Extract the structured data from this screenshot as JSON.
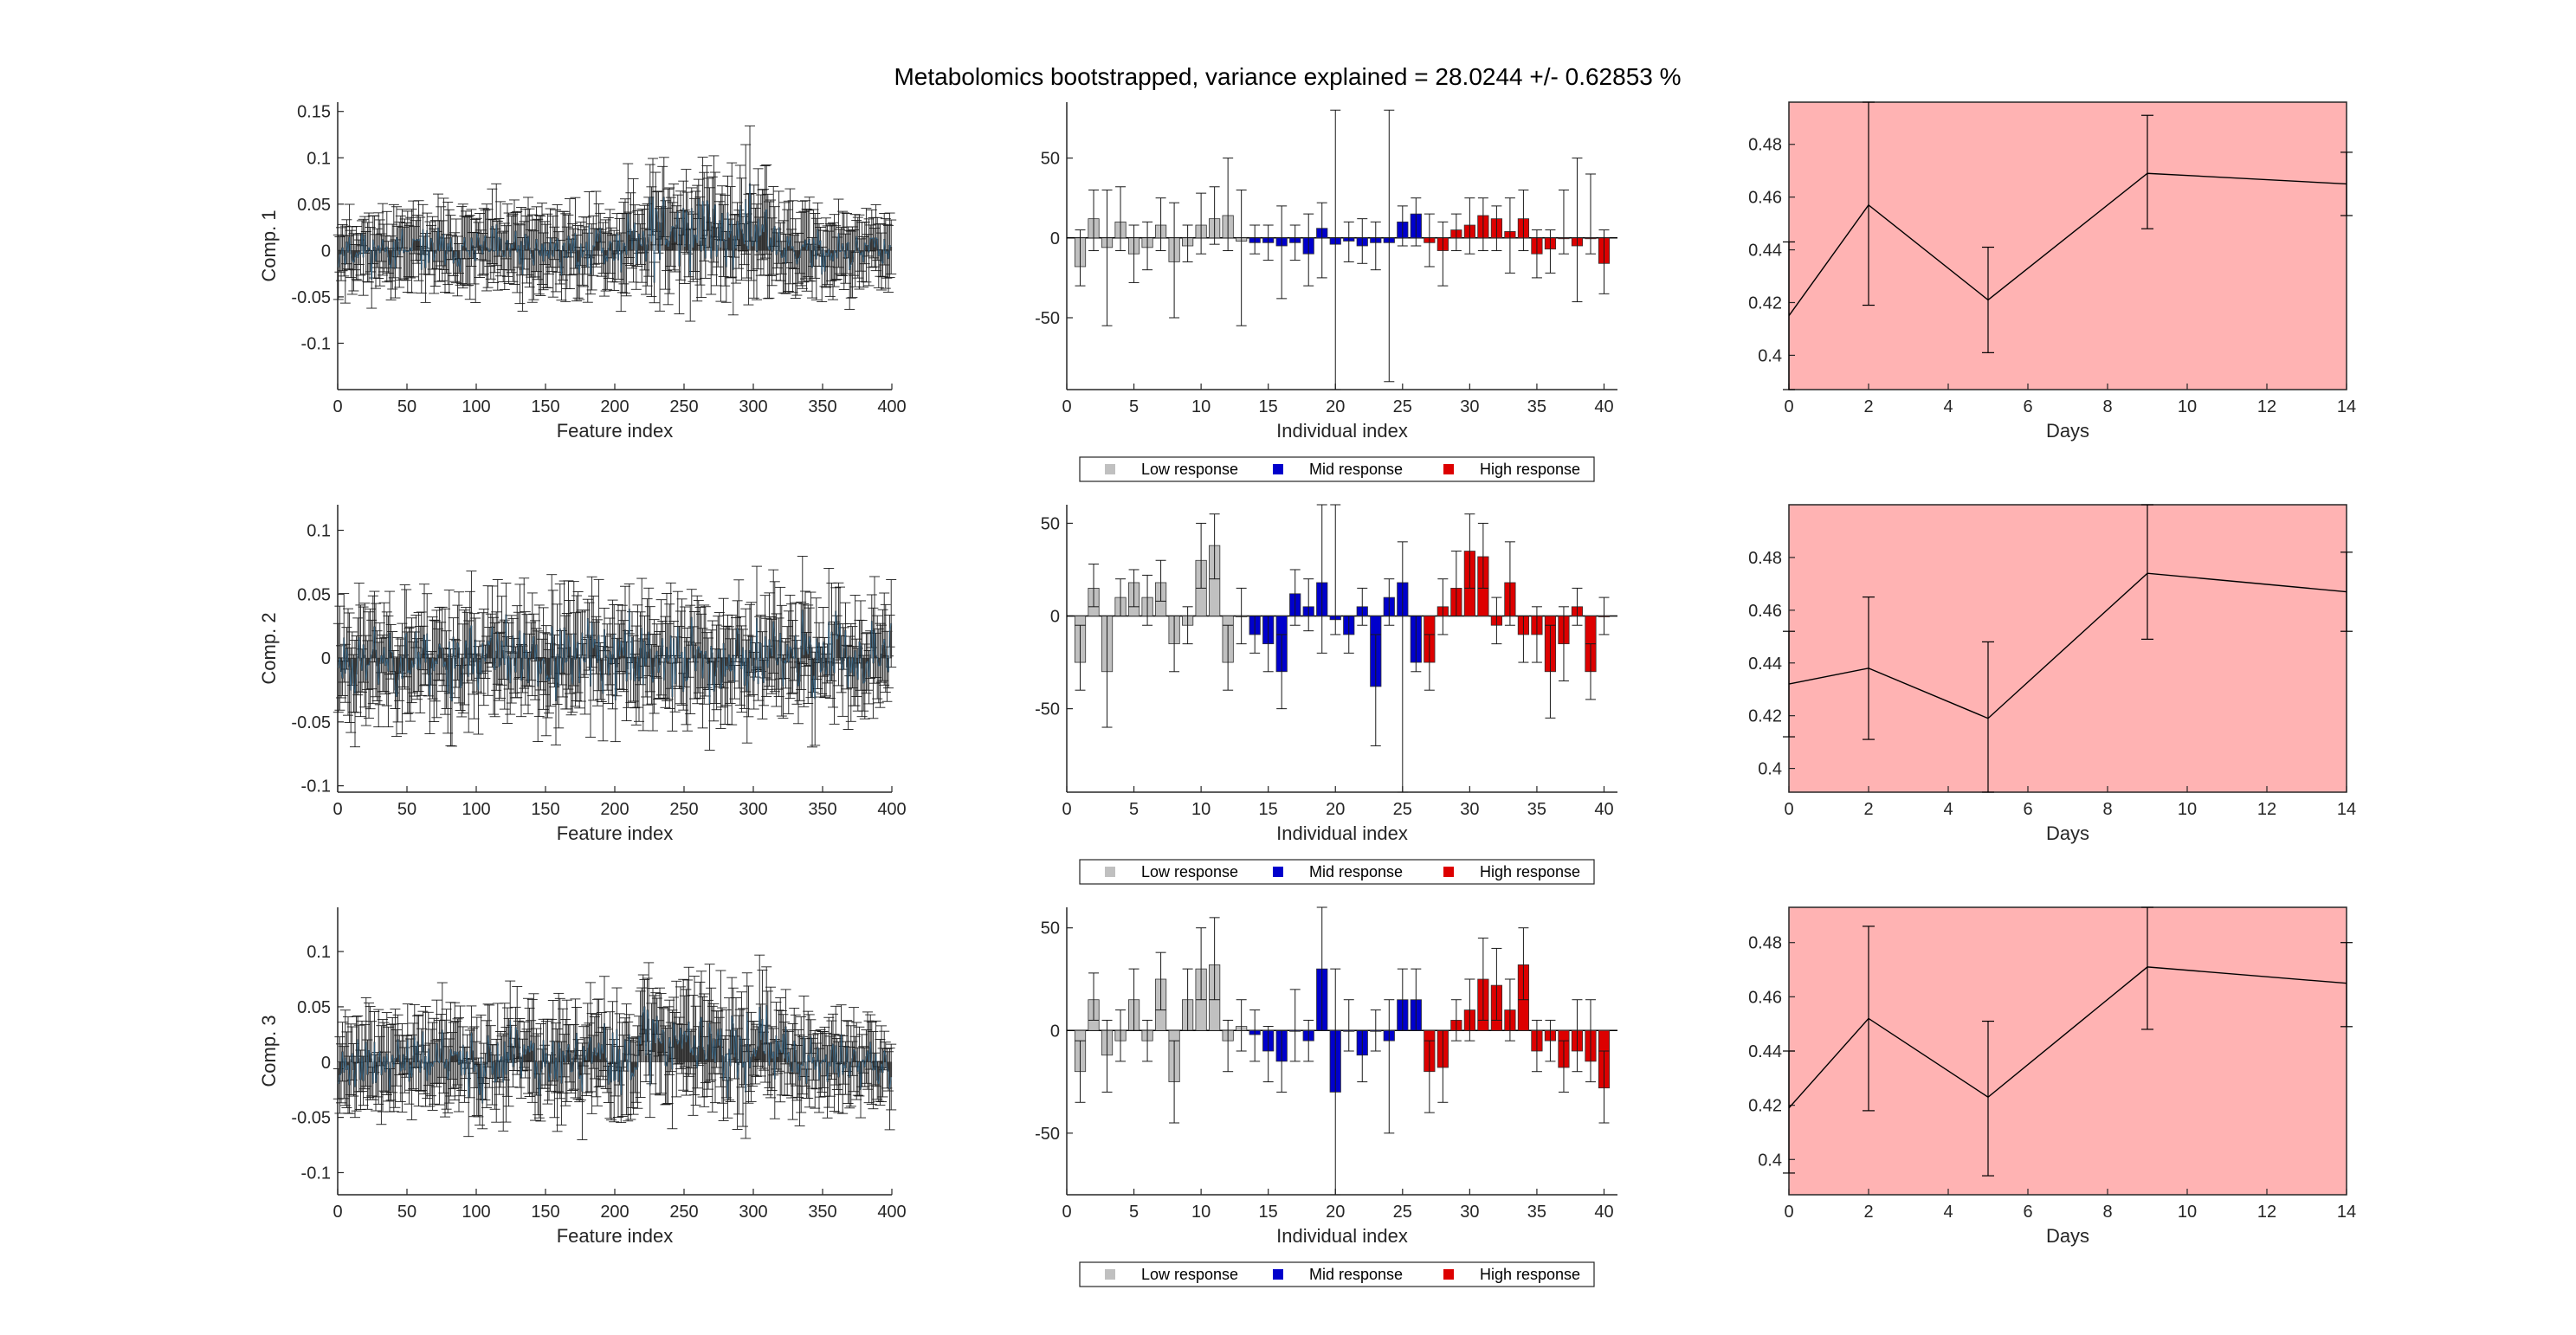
{
  "figure_title": "Metabolomics bootstrapped, variance explained = 28.0244 +/- 0.62853 %",
  "colors": {
    "low": "#c0c0c0",
    "mid": "#0000cc",
    "high": "#dd0000",
    "time_panel_bg": "#ffb3b3",
    "feature_bar": "#b0b0b0",
    "feature_line": "#2a7ab0"
  },
  "legend": {
    "items": [
      {
        "label": "Low response",
        "color": "#c0c0c0"
      },
      {
        "label": "Mid response",
        "color": "#0000cc"
      },
      {
        "label": "High response",
        "color": "#dd0000"
      }
    ]
  },
  "chart_data": [
    {
      "type": "bar",
      "panel": "loadings",
      "component": 1,
      "ylabel": "Comp. 1",
      "xlabel": "Feature index",
      "xlim": [
        0,
        400
      ],
      "ylim": [
        -0.15,
        0.16
      ],
      "xticks": [
        0,
        50,
        100,
        150,
        200,
        250,
        300,
        350,
        400
      ],
      "yticks": [
        -0.1,
        -0.05,
        0,
        0.05,
        0.1,
        0.15
      ],
      "ytick_labels": [
        "-0.1",
        "-0.05",
        "0",
        "0.05",
        "0.1",
        "0.15"
      ],
      "n_features": 400,
      "seed": 11,
      "profile": [
        [
          0,
          0.0,
          0.02,
          0.035
        ],
        [
          200,
          0.0,
          0.025,
          0.04
        ],
        [
          220,
          0.02,
          0.045,
          0.05
        ],
        [
          300,
          0.02,
          0.045,
          0.05
        ],
        [
          330,
          0.0,
          0.025,
          0.04
        ],
        [
          400,
          0.0,
          0.02,
          0.03
        ]
      ]
    },
    {
      "type": "bar",
      "panel": "scores",
      "component": 1,
      "xlabel": "Individual index",
      "xlim": [
        0,
        41
      ],
      "ylim": [
        -95,
        85
      ],
      "xticks": [
        0,
        5,
        10,
        15,
        20,
        25,
        30,
        35,
        40
      ],
      "yticks": [
        -50,
        0,
        50
      ],
      "ytick_labels": [
        "-50",
        "0",
        "50"
      ],
      "groups": [
        "low",
        "low",
        "low",
        "low",
        "low",
        "low",
        "low",
        "low",
        "low",
        "low",
        "low",
        "low",
        "low",
        "mid",
        "mid",
        "mid",
        "mid",
        "mid",
        "mid",
        "mid",
        "mid",
        "mid",
        "mid",
        "mid",
        "mid",
        "mid",
        "high",
        "high",
        "high",
        "high",
        "high",
        "high",
        "high",
        "high",
        "high",
        "high",
        "high",
        "high",
        "high",
        "high"
      ],
      "values": [
        -18,
        12,
        -6,
        10,
        -10,
        -6,
        8,
        -15,
        -5,
        8,
        12,
        14,
        -2,
        -3,
        -3,
        -5,
        -3,
        -10,
        6,
        -4,
        -2,
        -5,
        -3,
        -3,
        10,
        15,
        -3,
        -8,
        5,
        8,
        14,
        12,
        4,
        12,
        -10,
        -7,
        0,
        -5,
        0,
        -16
      ],
      "errors": [
        [
          -30,
          5
        ],
        [
          -8,
          30
        ],
        [
          -55,
          30
        ],
        [
          -8,
          32
        ],
        [
          -28,
          8
        ],
        [
          -20,
          10
        ],
        [
          -8,
          25
        ],
        [
          -50,
          22
        ],
        [
          -15,
          8
        ],
        [
          -10,
          28
        ],
        [
          -4,
          32
        ],
        [
          -8,
          50
        ],
        [
          -55,
          30
        ],
        [
          -10,
          8
        ],
        [
          -14,
          8
        ],
        [
          -38,
          20
        ],
        [
          -14,
          8
        ],
        [
          -30,
          15
        ],
        [
          -25,
          22
        ],
        [
          -95,
          80
        ],
        [
          -15,
          10
        ],
        [
          -16,
          12
        ],
        [
          -20,
          10
        ],
        [
          -90,
          80
        ],
        [
          -5,
          20
        ],
        [
          -5,
          25
        ],
        [
          -18,
          15
        ],
        [
          -30,
          10
        ],
        [
          -8,
          15
        ],
        [
          -10,
          25
        ],
        [
          -8,
          25
        ],
        [
          -8,
          20
        ],
        [
          -22,
          25
        ],
        [
          -8,
          30
        ],
        [
          -25,
          5
        ],
        [
          -22,
          5
        ],
        [
          -10,
          30
        ],
        [
          -40,
          50
        ],
        [
          -10,
          40
        ],
        [
          -35,
          5
        ]
      ]
    },
    {
      "type": "line",
      "panel": "time",
      "component": 1,
      "xlabel": "Days",
      "xlim": [
        0,
        14
      ],
      "ylim": [
        0.387,
        0.496
      ],
      "xticks": [
        0,
        2,
        4,
        6,
        8,
        10,
        12,
        14
      ],
      "yticks": [
        0.4,
        0.42,
        0.44,
        0.46,
        0.48
      ],
      "ytick_labels": [
        "0.4",
        "0.42",
        "0.44",
        "0.46",
        "0.48"
      ],
      "x": [
        0,
        2,
        5,
        9,
        14
      ],
      "y": [
        0.415,
        0.457,
        0.421,
        0.469,
        0.465
      ],
      "errors": [
        [
          0.387,
          0.443
        ],
        [
          0.419,
          0.496
        ],
        [
          0.401,
          0.441
        ],
        [
          0.448,
          0.491
        ],
        [
          0.453,
          0.477
        ]
      ]
    },
    {
      "type": "bar",
      "panel": "loadings",
      "component": 2,
      "ylabel": "Comp. 2",
      "xlabel": "Feature index",
      "xlim": [
        0,
        400
      ],
      "ylim": [
        -0.105,
        0.12
      ],
      "xticks": [
        0,
        50,
        100,
        150,
        200,
        250,
        300,
        350,
        400
      ],
      "yticks": [
        -0.1,
        -0.05,
        0,
        0.05,
        0.1
      ],
      "ytick_labels": [
        "-0.1",
        "-0.05",
        "0",
        "0.05",
        "0.1"
      ],
      "n_features": 400,
      "seed": 23,
      "profile": [
        [
          0,
          0.0,
          0.03,
          0.035
        ],
        [
          400,
          0.0,
          0.03,
          0.035
        ]
      ]
    },
    {
      "type": "bar",
      "panel": "scores",
      "component": 2,
      "xlabel": "Individual index",
      "xlim": [
        0,
        41
      ],
      "ylim": [
        -95,
        60
      ],
      "xticks": [
        0,
        5,
        10,
        15,
        20,
        25,
        30,
        35,
        40
      ],
      "yticks": [
        -50,
        0,
        50
      ],
      "ytick_labels": [
        "-50",
        "0",
        "50"
      ],
      "groups": [
        "low",
        "low",
        "low",
        "low",
        "low",
        "low",
        "low",
        "low",
        "low",
        "low",
        "low",
        "low",
        "low",
        "mid",
        "mid",
        "mid",
        "mid",
        "mid",
        "mid",
        "mid",
        "mid",
        "mid",
        "mid",
        "mid",
        "mid",
        "mid",
        "high",
        "high",
        "high",
        "high",
        "high",
        "high",
        "high",
        "high",
        "high",
        "high",
        "high",
        "high",
        "high",
        "high"
      ],
      "values": [
        -25,
        15,
        -30,
        10,
        18,
        10,
        18,
        -15,
        -5,
        30,
        38,
        -25,
        0,
        -10,
        -15,
        -30,
        12,
        5,
        18,
        -2,
        -10,
        5,
        -38,
        10,
        18,
        -25,
        -25,
        5,
        15,
        35,
        32,
        -5,
        18,
        -10,
        -10,
        -30,
        -15,
        5,
        -30,
        0
      ],
      "errors": [
        [
          -40,
          -5
        ],
        [
          5,
          28
        ],
        [
          -60,
          0
        ],
        [
          0,
          20
        ],
        [
          5,
          25
        ],
        [
          -5,
          22
        ],
        [
          8,
          30
        ],
        [
          -30,
          0
        ],
        [
          -15,
          5
        ],
        [
          15,
          50
        ],
        [
          20,
          55
        ],
        [
          -40,
          -5
        ],
        [
          -15,
          15
        ],
        [
          -20,
          0
        ],
        [
          -30,
          0
        ],
        [
          -50,
          -10
        ],
        [
          -5,
          25
        ],
        [
          -8,
          20
        ],
        [
          -20,
          60
        ],
        [
          -10,
          60
        ],
        [
          -20,
          0
        ],
        [
          -5,
          15
        ],
        [
          -70,
          -10
        ],
        [
          -5,
          20
        ],
        [
          -95,
          40
        ],
        [
          -30,
          0
        ],
        [
          -40,
          -10
        ],
        [
          -10,
          20
        ],
        [
          0,
          35
        ],
        [
          15,
          55
        ],
        [
          15,
          50
        ],
        [
          -15,
          10
        ],
        [
          -5,
          40
        ],
        [
          -25,
          0
        ],
        [
          -25,
          5
        ],
        [
          -55,
          -5
        ],
        [
          -35,
          5
        ],
        [
          -5,
          15
        ],
        [
          -45,
          -15
        ],
        [
          -10,
          10
        ]
      ]
    },
    {
      "type": "line",
      "panel": "time",
      "component": 2,
      "xlabel": "Days",
      "xlim": [
        0,
        14
      ],
      "ylim": [
        0.391,
        0.5
      ],
      "xticks": [
        0,
        2,
        4,
        6,
        8,
        10,
        12,
        14
      ],
      "yticks": [
        0.4,
        0.42,
        0.44,
        0.46,
        0.48
      ],
      "ytick_labels": [
        "0.4",
        "0.42",
        "0.44",
        "0.46",
        "0.48"
      ],
      "x": [
        0,
        2,
        5,
        9,
        14
      ],
      "y": [
        0.432,
        0.438,
        0.419,
        0.474,
        0.467
      ],
      "errors": [
        [
          0.412,
          0.452
        ],
        [
          0.411,
          0.465
        ],
        [
          0.391,
          0.448
        ],
        [
          0.449,
          0.5
        ],
        [
          0.452,
          0.482
        ]
      ]
    },
    {
      "type": "bar",
      "panel": "loadings",
      "component": 3,
      "ylabel": "Comp. 3",
      "xlabel": "Feature index",
      "xlim": [
        0,
        400
      ],
      "ylim": [
        -0.12,
        0.14
      ],
      "xticks": [
        0,
        50,
        100,
        150,
        200,
        250,
        300,
        350,
        400
      ],
      "yticks": [
        -0.1,
        -0.05,
        0,
        0.05,
        0.1
      ],
      "ytick_labels": [
        "-0.1",
        "-0.05",
        "0",
        "0.05",
        "0.1"
      ],
      "n_features": 400,
      "seed": 37,
      "profile": [
        [
          0,
          0.0,
          0.025,
          0.035
        ],
        [
          200,
          0.0,
          0.03,
          0.04
        ],
        [
          225,
          0.02,
          0.04,
          0.045
        ],
        [
          300,
          0.02,
          0.04,
          0.045
        ],
        [
          330,
          0.0,
          0.025,
          0.035
        ],
        [
          400,
          0.0,
          0.02,
          0.03
        ]
      ]
    },
    {
      "type": "bar",
      "panel": "scores",
      "component": 3,
      "xlabel": "Individual index",
      "xlim": [
        0,
        41
      ],
      "ylim": [
        -80,
        60
      ],
      "xticks": [
        0,
        5,
        10,
        15,
        20,
        25,
        30,
        35,
        40
      ],
      "yticks": [
        -50,
        0,
        50
      ],
      "ytick_labels": [
        "-50",
        "0",
        "50"
      ],
      "groups": [
        "low",
        "low",
        "low",
        "low",
        "low",
        "low",
        "low",
        "low",
        "low",
        "low",
        "low",
        "low",
        "low",
        "mid",
        "mid",
        "mid",
        "mid",
        "mid",
        "mid",
        "mid",
        "mid",
        "mid",
        "mid",
        "mid",
        "mid",
        "mid",
        "high",
        "high",
        "high",
        "high",
        "high",
        "high",
        "high",
        "high",
        "high",
        "high",
        "high",
        "high",
        "high",
        "high"
      ],
      "values": [
        -20,
        15,
        -12,
        -5,
        15,
        -5,
        25,
        -25,
        15,
        30,
        32,
        -5,
        2,
        -2,
        -10,
        -15,
        0,
        -5,
        30,
        -30,
        0,
        -12,
        0,
        -5,
        15,
        15,
        -20,
        -18,
        5,
        10,
        25,
        22,
        10,
        32,
        -10,
        -5,
        -18,
        -10,
        -15,
        -28
      ],
      "errors": [
        [
          -35,
          -5
        ],
        [
          5,
          28
        ],
        [
          -30,
          5
        ],
        [
          -15,
          10
        ],
        [
          0,
          30
        ],
        [
          -15,
          5
        ],
        [
          10,
          38
        ],
        [
          -45,
          -5
        ],
        [
          0,
          30
        ],
        [
          15,
          50
        ],
        [
          15,
          55
        ],
        [
          -20,
          5
        ],
        [
          -10,
          15
        ],
        [
          -15,
          10
        ],
        [
          -25,
          2
        ],
        [
          -30,
          0
        ],
        [
          -15,
          20
        ],
        [
          -15,
          5
        ],
        [
          0,
          60
        ],
        [
          -80,
          30
        ],
        [
          -10,
          15
        ],
        [
          -25,
          0
        ],
        [
          -10,
          10
        ],
        [
          -50,
          15
        ],
        [
          0,
          30
        ],
        [
          0,
          30
        ],
        [
          -40,
          -5
        ],
        [
          -35,
          0
        ],
        [
          -5,
          15
        ],
        [
          -5,
          25
        ],
        [
          5,
          45
        ],
        [
          5,
          40
        ],
        [
          -5,
          25
        ],
        [
          15,
          50
        ],
        [
          -20,
          5
        ],
        [
          -15,
          5
        ],
        [
          -30,
          -5
        ],
        [
          -20,
          15
        ],
        [
          -25,
          15
        ],
        [
          -45,
          -10
        ]
      ]
    },
    {
      "type": "line",
      "panel": "time",
      "component": 3,
      "xlabel": "Days",
      "xlim": [
        0,
        14
      ],
      "ylim": [
        0.387,
        0.493
      ],
      "xticks": [
        0,
        2,
        4,
        6,
        8,
        10,
        12,
        14
      ],
      "yticks": [
        0.4,
        0.42,
        0.44,
        0.46,
        0.48
      ],
      "ytick_labels": [
        "0.4",
        "0.42",
        "0.44",
        "0.46",
        "0.48"
      ],
      "x": [
        0,
        2,
        5,
        9,
        14
      ],
      "y": [
        0.419,
        0.452,
        0.423,
        0.471,
        0.465
      ],
      "errors": [
        [
          0.395,
          0.44
        ],
        [
          0.418,
          0.486
        ],
        [
          0.394,
          0.451
        ],
        [
          0.448,
          0.493
        ],
        [
          0.449,
          0.48
        ]
      ]
    }
  ]
}
